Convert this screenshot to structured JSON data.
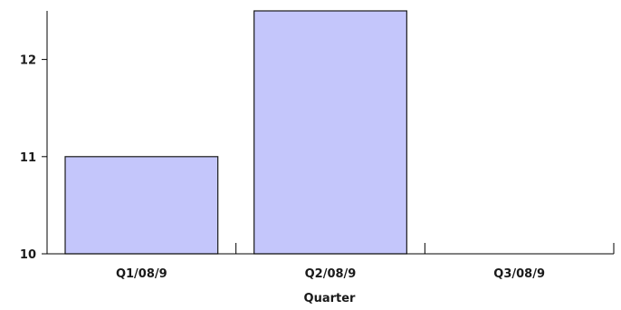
{
  "chart_data": {
    "type": "bar",
    "title": "",
    "xlabel": "Quarter",
    "ylabel": "",
    "categories": [
      "Q1/08/9",
      "Q2/08/9",
      "Q3/08/9"
    ],
    "values": [
      11,
      12.5,
      10
    ],
    "ylim": [
      10,
      12.5
    ],
    "yticks": [
      10,
      11,
      12
    ],
    "ytick_labels": [
      "10",
      "11",
      "12"
    ],
    "grid": false,
    "legend": "none",
    "colors": {
      "bar_fill": "#c4c6fb",
      "bar_stroke": "#1a1a1a",
      "axis": "#000000"
    }
  }
}
